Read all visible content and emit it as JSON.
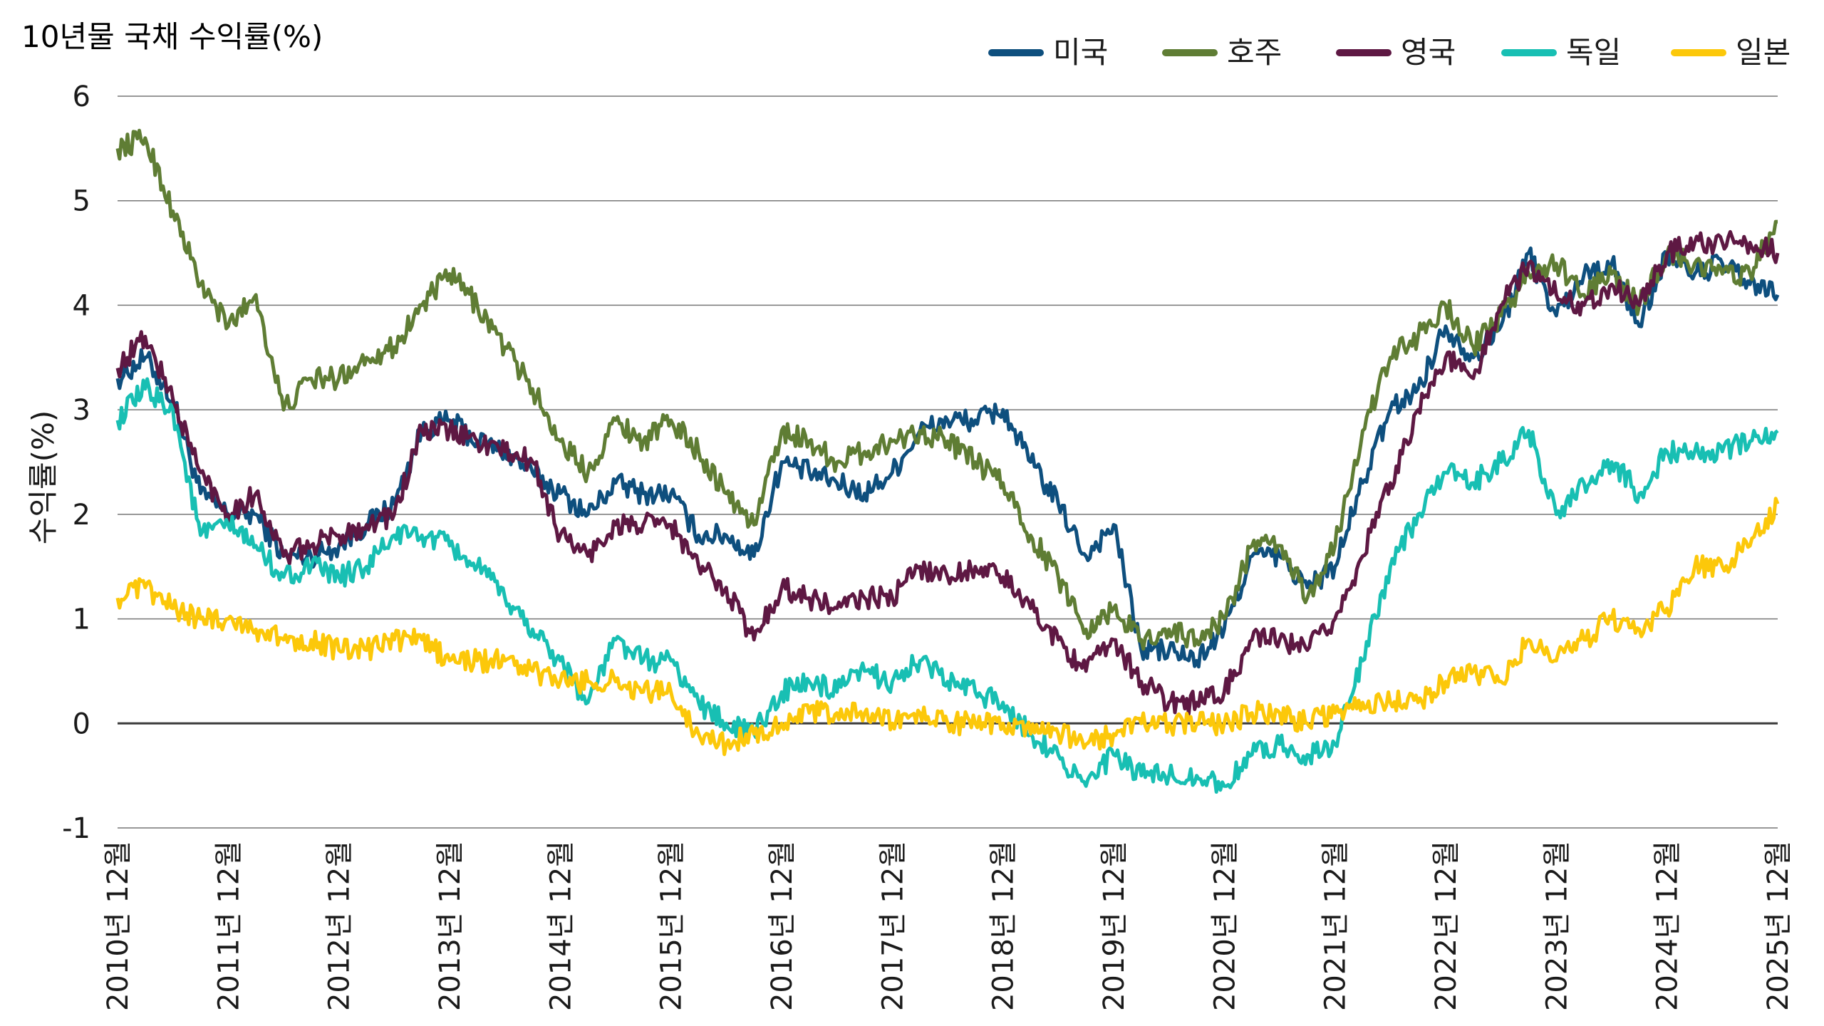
{
  "chart_data": {
    "type": "line",
    "title": "10년물 국채 수익률(%)",
    "ylabel": "수익률(%)",
    "xlabel": "",
    "ylim": [
      -1,
      6
    ],
    "yticks": [
      6,
      5,
      4,
      3,
      2,
      1,
      0,
      -1
    ],
    "x_tick_labels": [
      "2010년 12월",
      "2011년 12월",
      "2012년 12월",
      "2013년 12월",
      "2014년 12월",
      "2015년 12월",
      "2016년 12월",
      "2017년 12월",
      "2018년 12월",
      "2019년 12월",
      "2020년 12월",
      "2021년 12월",
      "2022년 12월",
      "2023년 12월",
      "2024년 12월",
      "2025년 12월"
    ],
    "x_range": [
      2010.92,
      2025.92
    ],
    "grid": true,
    "legend_position": "top-right",
    "x": [
      2010.92,
      2011.17,
      2011.42,
      2011.67,
      2011.92,
      2012.17,
      2012.42,
      2012.67,
      2012.92,
      2013.17,
      2013.42,
      2013.67,
      2013.92,
      2014.17,
      2014.42,
      2014.67,
      2014.92,
      2015.17,
      2015.42,
      2015.67,
      2015.92,
      2016.17,
      2016.42,
      2016.67,
      2016.92,
      2017.17,
      2017.42,
      2017.67,
      2017.92,
      2018.17,
      2018.42,
      2018.67,
      2018.92,
      2019.17,
      2019.42,
      2019.67,
      2019.92,
      2020.17,
      2020.42,
      2020.67,
      2020.92,
      2021.17,
      2021.42,
      2021.67,
      2021.92,
      2022.17,
      2022.42,
      2022.67,
      2022.92,
      2023.17,
      2023.42,
      2023.67,
      2023.92,
      2024.17,
      2024.42,
      2024.67,
      2024.92,
      2025.17,
      2025.42,
      2025.67,
      2025.92
    ],
    "series": [
      {
        "name": "미국",
        "color": "#0e4f7e",
        "values": [
          3.3,
          3.5,
          3.1,
          2.2,
          2.0,
          2.0,
          1.6,
          1.6,
          1.7,
          1.9,
          2.1,
          2.8,
          2.9,
          2.7,
          2.6,
          2.4,
          2.2,
          2.0,
          2.3,
          2.2,
          2.2,
          1.8,
          1.8,
          1.6,
          2.5,
          2.4,
          2.3,
          2.2,
          2.4,
          2.8,
          2.9,
          2.9,
          3.0,
          2.5,
          2.1,
          1.6,
          1.9,
          0.7,
          0.7,
          0.6,
          0.9,
          1.6,
          1.6,
          1.3,
          1.5,
          2.3,
          3.0,
          3.2,
          3.8,
          3.5,
          3.8,
          4.5,
          3.9,
          4.3,
          4.4,
          3.8,
          4.5,
          4.3,
          4.4,
          4.2,
          4.1
        ]
      },
      {
        "name": "호주",
        "color": "#5f7d34",
        "values": [
          5.5,
          5.6,
          4.9,
          4.2,
          3.8,
          4.1,
          3.0,
          3.3,
          3.3,
          3.5,
          3.6,
          4.0,
          4.3,
          4.0,
          3.6,
          3.2,
          2.7,
          2.4,
          2.9,
          2.7,
          2.9,
          2.6,
          2.2,
          1.9,
          2.8,
          2.7,
          2.5,
          2.6,
          2.7,
          2.8,
          2.7,
          2.5,
          2.3,
          1.8,
          1.4,
          0.9,
          1.1,
          0.8,
          0.9,
          0.8,
          1.0,
          1.7,
          1.7,
          1.2,
          1.7,
          2.8,
          3.5,
          3.7,
          4.0,
          3.6,
          3.9,
          4.3,
          4.4,
          4.1,
          4.3,
          4.0,
          4.5,
          4.4,
          4.3,
          4.3,
          4.8
        ]
      },
      {
        "name": "영국",
        "color": "#5e1843",
        "values": [
          3.4,
          3.7,
          3.1,
          2.4,
          2.0,
          2.2,
          1.6,
          1.7,
          1.8,
          1.9,
          2.0,
          2.8,
          2.8,
          2.7,
          2.6,
          2.5,
          1.8,
          1.6,
          1.9,
          1.9,
          1.9,
          1.5,
          1.3,
          0.8,
          1.3,
          1.2,
          1.1,
          1.2,
          1.2,
          1.5,
          1.4,
          1.5,
          1.4,
          1.1,
          0.8,
          0.5,
          0.8,
          0.4,
          0.2,
          0.2,
          0.3,
          0.8,
          0.8,
          0.7,
          1.0,
          1.6,
          2.3,
          3.0,
          3.5,
          3.3,
          4.0,
          4.4,
          4.1,
          4.0,
          4.2,
          4.0,
          4.5,
          4.6,
          4.6,
          4.6,
          4.5
        ]
      },
      {
        "name": "독일",
        "color": "#18bfb3",
        "values": [
          2.9,
          3.2,
          3.0,
          1.8,
          1.9,
          1.7,
          1.4,
          1.5,
          1.4,
          1.5,
          1.8,
          1.8,
          1.7,
          1.5,
          1.2,
          0.9,
          0.6,
          0.2,
          0.8,
          0.6,
          0.6,
          0.2,
          0.0,
          -0.1,
          0.3,
          0.4,
          0.3,
          0.5,
          0.4,
          0.6,
          0.4,
          0.3,
          0.2,
          -0.1,
          -0.3,
          -0.6,
          -0.3,
          -0.5,
          -0.5,
          -0.5,
          -0.6,
          -0.3,
          -0.2,
          -0.3,
          -0.2,
          0.6,
          1.5,
          2.0,
          2.4,
          2.3,
          2.5,
          2.8,
          2.0,
          2.3,
          2.5,
          2.2,
          2.6,
          2.6,
          2.6,
          2.7,
          2.8
        ]
      },
      {
        "name": "일본",
        "color": "#fcc80a",
        "values": [
          1.2,
          1.3,
          1.1,
          1.0,
          1.0,
          0.9,
          0.8,
          0.8,
          0.7,
          0.7,
          0.8,
          0.8,
          0.6,
          0.6,
          0.6,
          0.5,
          0.4,
          0.4,
          0.4,
          0.3,
          0.3,
          -0.1,
          -0.2,
          -0.1,
          0.0,
          0.1,
          0.1,
          0.1,
          0.0,
          0.1,
          0.0,
          0.0,
          0.0,
          -0.1,
          -0.1,
          -0.2,
          -0.1,
          0.0,
          0.0,
          0.0,
          0.0,
          0.1,
          0.1,
          0.0,
          0.1,
          0.2,
          0.2,
          0.2,
          0.4,
          0.5,
          0.4,
          0.8,
          0.6,
          0.8,
          1.0,
          0.9,
          1.1,
          1.5,
          1.5,
          1.7,
          2.1
        ]
      }
    ]
  }
}
